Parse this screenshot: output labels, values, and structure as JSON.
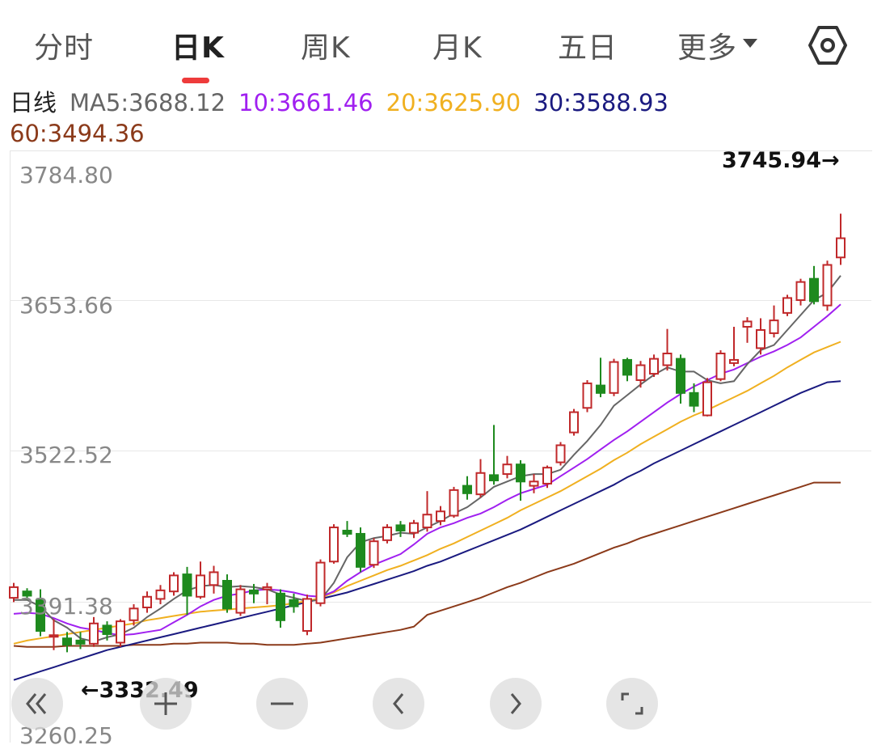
{
  "tabs": [
    {
      "label": "分时",
      "active": false
    },
    {
      "label": "日K",
      "active": true
    },
    {
      "label": "周K",
      "active": false
    },
    {
      "label": "月K",
      "active": false
    },
    {
      "label": "五日",
      "active": false
    },
    {
      "label": "更多",
      "active": false
    }
  ],
  "settings_icon": "hexagon-gear-icon",
  "legend": {
    "period": "日线",
    "ma5": "MA5:3688.12",
    "ma10": "10:3661.46",
    "ma20": "20:3625.90",
    "ma30": "30:3588.93",
    "ma60": "60:3494.36"
  },
  "colors": {
    "up": "#c0282a",
    "down": "#1e8a1e",
    "ma5": "#666666",
    "ma10": "#a020f0",
    "ma20": "#f0b020",
    "ma30": "#1a1a80",
    "ma60": "#8b3a1a",
    "accent": "#ee3b3b"
  },
  "y_axis": {
    "labels": [
      "3784.80",
      "3653.66",
      "3522.52",
      "3391.38",
      "3260.25"
    ]
  },
  "annotations": {
    "max_label": "3745.94→",
    "min_label": "←3332.49"
  },
  "controls": [
    {
      "name": "scroll-start-button",
      "icon": "double-chevron-left-icon"
    },
    {
      "name": "zoom-in-button",
      "icon": "plus-icon"
    },
    {
      "name": "zoom-out-button",
      "icon": "minus-icon"
    },
    {
      "name": "prev-button",
      "icon": "chevron-left-icon"
    },
    {
      "name": "next-button",
      "icon": "chevron-right-icon"
    },
    {
      "name": "fullscreen-button",
      "icon": "fullscreen-icon"
    }
  ],
  "chart_data": {
    "type": "candlestick",
    "ylim": [
      3260.25,
      3784.8
    ],
    "candles": [
      {
        "o": 3386,
        "c": 3396,
        "h": 3400,
        "l": 3382,
        "up": true
      },
      {
        "o": 3388,
        "c": 3392,
        "h": 3395,
        "l": 3384,
        "up": false
      },
      {
        "o": 3384,
        "c": 3355,
        "h": 3394,
        "l": 3350,
        "up": false
      },
      {
        "o": 3350,
        "c": 3351,
        "h": 3366,
        "l": 3337,
        "up": true
      },
      {
        "o": 3348,
        "c": 3342,
        "h": 3354,
        "l": 3335,
        "up": false
      },
      {
        "o": 3343,
        "c": 3346,
        "h": 3354,
        "l": 3338,
        "up": false
      },
      {
        "o": 3343,
        "c": 3362,
        "h": 3368,
        "l": 3340,
        "up": true
      },
      {
        "o": 3352,
        "c": 3360,
        "h": 3364,
        "l": 3346,
        "up": false
      },
      {
        "o": 3344,
        "c": 3364,
        "h": 3366,
        "l": 3340,
        "up": true
      },
      {
        "o": 3365,
        "c": 3376,
        "h": 3380,
        "l": 3360,
        "up": true
      },
      {
        "o": 3377,
        "c": 3387,
        "h": 3392,
        "l": 3372,
        "up": true
      },
      {
        "o": 3385,
        "c": 3393,
        "h": 3398,
        "l": 3380,
        "up": true
      },
      {
        "o": 3392,
        "c": 3407,
        "h": 3410,
        "l": 3388,
        "up": true
      },
      {
        "o": 3408,
        "c": 3388,
        "h": 3415,
        "l": 3370,
        "up": false
      },
      {
        "o": 3387,
        "c": 3407,
        "h": 3420,
        "l": 3385,
        "up": true
      },
      {
        "o": 3398,
        "c": 3410,
        "h": 3416,
        "l": 3390,
        "up": true
      },
      {
        "o": 3402,
        "c": 3376,
        "h": 3408,
        "l": 3372,
        "up": false
      },
      {
        "o": 3372,
        "c": 3394,
        "h": 3398,
        "l": 3369,
        "up": true
      },
      {
        "o": 3393,
        "c": 3390,
        "h": 3399,
        "l": 3381,
        "up": false
      },
      {
        "o": 3394,
        "c": 3396,
        "h": 3400,
        "l": 3380,
        "up": true
      },
      {
        "o": 3390,
        "c": 3365,
        "h": 3394,
        "l": 3358,
        "up": false
      },
      {
        "o": 3378,
        "c": 3384,
        "h": 3390,
        "l": 3372,
        "up": false
      },
      {
        "o": 3355,
        "c": 3385,
        "h": 3389,
        "l": 3351,
        "up": true
      },
      {
        "o": 3381,
        "c": 3419,
        "h": 3422,
        "l": 3378,
        "up": true
      },
      {
        "o": 3420,
        "c": 3452,
        "h": 3455,
        "l": 3418,
        "up": true
      },
      {
        "o": 3449,
        "c": 3446,
        "h": 3458,
        "l": 3443,
        "up": false
      },
      {
        "o": 3446,
        "c": 3415,
        "h": 3452,
        "l": 3410,
        "up": false
      },
      {
        "o": 3417,
        "c": 3439,
        "h": 3442,
        "l": 3414,
        "up": true
      },
      {
        "o": 3440,
        "c": 3452,
        "h": 3455,
        "l": 3437,
        "up": true
      },
      {
        "o": 3454,
        "c": 3449,
        "h": 3458,
        "l": 3443,
        "up": false
      },
      {
        "o": 3447,
        "c": 3456,
        "h": 3459,
        "l": 3442,
        "up": true
      },
      {
        "o": 3452,
        "c": 3464,
        "h": 3486,
        "l": 3448,
        "up": true
      },
      {
        "o": 3458,
        "c": 3467,
        "h": 3472,
        "l": 3454,
        "up": true
      },
      {
        "o": 3463,
        "c": 3487,
        "h": 3490,
        "l": 3461,
        "up": true
      },
      {
        "o": 3491,
        "c": 3484,
        "h": 3500,
        "l": 3478,
        "up": false
      },
      {
        "o": 3483,
        "c": 3503,
        "h": 3516,
        "l": 3480,
        "up": true
      },
      {
        "o": 3501,
        "c": 3496,
        "h": 3548,
        "l": 3492,
        "up": false
      },
      {
        "o": 3502,
        "c": 3511,
        "h": 3519,
        "l": 3498,
        "up": true
      },
      {
        "o": 3511,
        "c": 3495,
        "h": 3515,
        "l": 3477,
        "up": false
      },
      {
        "o": 3495,
        "c": 3491,
        "h": 3502,
        "l": 3484,
        "up": true
      },
      {
        "o": 3493,
        "c": 3508,
        "h": 3510,
        "l": 3489,
        "up": true
      },
      {
        "o": 3513,
        "c": 3529,
        "h": 3532,
        "l": 3510,
        "up": true
      },
      {
        "o": 3541,
        "c": 3560,
        "h": 3563,
        "l": 3538,
        "up": true
      },
      {
        "o": 3564,
        "c": 3587,
        "h": 3590,
        "l": 3560,
        "up": true
      },
      {
        "o": 3585,
        "c": 3578,
        "h": 3611,
        "l": 3574,
        "up": false
      },
      {
        "o": 3578,
        "c": 3607,
        "h": 3610,
        "l": 3575,
        "up": true
      },
      {
        "o": 3609,
        "c": 3595,
        "h": 3611,
        "l": 3589,
        "up": false
      },
      {
        "o": 3590,
        "c": 3604,
        "h": 3608,
        "l": 3583,
        "up": true
      },
      {
        "o": 3596,
        "c": 3610,
        "h": 3614,
        "l": 3593,
        "up": true
      },
      {
        "o": 3604,
        "c": 3615,
        "h": 3638,
        "l": 3599,
        "up": true
      },
      {
        "o": 3610,
        "c": 3578,
        "h": 3614,
        "l": 3568,
        "up": false
      },
      {
        "o": 3578,
        "c": 3566,
        "h": 3587,
        "l": 3560,
        "up": false
      },
      {
        "o": 3557,
        "c": 3588,
        "h": 3592,
        "l": 3556,
        "up": true
      },
      {
        "o": 3591,
        "c": 3615,
        "h": 3618,
        "l": 3589,
        "up": true
      },
      {
        "o": 3609,
        "c": 3606,
        "h": 3640,
        "l": 3603,
        "up": true
      },
      {
        "o": 3640,
        "c": 3645,
        "h": 3649,
        "l": 3625,
        "up": true
      },
      {
        "o": 3620,
        "c": 3637,
        "h": 3648,
        "l": 3614,
        "up": true
      },
      {
        "o": 3634,
        "c": 3646,
        "h": 3660,
        "l": 3630,
        "up": true
      },
      {
        "o": 3653,
        "c": 3667,
        "h": 3670,
        "l": 3650,
        "up": true
      },
      {
        "o": 3665,
        "c": 3682,
        "h": 3685,
        "l": 3660,
        "up": true
      },
      {
        "o": 3685,
        "c": 3664,
        "h": 3697,
        "l": 3661,
        "up": false
      },
      {
        "o": 3660,
        "c": 3698,
        "h": 3702,
        "l": 3655,
        "up": true
      },
      {
        "o": 3705,
        "c": 3723,
        "h": 3746,
        "l": 3698,
        "up": true
      }
    ],
    "ma5": [
      3384,
      3384,
      3378,
      3365,
      3358,
      3348,
      3345,
      3349,
      3352,
      3358,
      3368,
      3376,
      3385,
      3393,
      3397,
      3398,
      3396,
      3397,
      3396,
      3394,
      3389,
      3386,
      3383,
      3384,
      3400,
      3424,
      3438,
      3442,
      3444,
      3447,
      3446,
      3452,
      3458,
      3465,
      3471,
      3480,
      3490,
      3495,
      3500,
      3502,
      3502,
      3506,
      3520,
      3533,
      3548,
      3566,
      3576,
      3586,
      3595,
      3602,
      3598,
      3598,
      3590,
      3587,
      3589,
      3605,
      3618,
      3623,
      3637,
      3651,
      3665,
      3672,
      3688
    ],
    "ma10": [
      3371,
      3372,
      3371,
      3367,
      3362,
      3358,
      3356,
      3353,
      3351,
      3352,
      3354,
      3356,
      3363,
      3370,
      3378,
      3384,
      3388,
      3390,
      3393,
      3394,
      3393,
      3391,
      3388,
      3387,
      3392,
      3402,
      3410,
      3417,
      3422,
      3427,
      3436,
      3446,
      3452,
      3456,
      3461,
      3465,
      3471,
      3478,
      3484,
      3488,
      3492,
      3500,
      3508,
      3516,
      3525,
      3534,
      3542,
      3551,
      3560,
      3569,
      3577,
      3584,
      3590,
      3596,
      3600,
      3606,
      3612,
      3617,
      3623,
      3630,
      3640,
      3650,
      3661
    ],
    "ma20": [
      3343,
      3346,
      3348,
      3350,
      3352,
      3354,
      3356,
      3358,
      3360,
      3362,
      3365,
      3367,
      3369,
      3371,
      3373,
      3374,
      3375,
      3376,
      3377,
      3378,
      3379,
      3381,
      3383,
      3386,
      3391,
      3397,
      3402,
      3407,
      3412,
      3416,
      3421,
      3426,
      3432,
      3437,
      3443,
      3449,
      3455,
      3461,
      3468,
      3474,
      3480,
      3486,
      3493,
      3500,
      3507,
      3515,
      3522,
      3530,
      3537,
      3544,
      3551,
      3557,
      3562,
      3568,
      3574,
      3580,
      3587,
      3594,
      3602,
      3609,
      3616,
      3621,
      3626
    ],
    "ma30": [
      3309,
      3313,
      3317,
      3321,
      3325,
      3329,
      3333,
      3337,
      3340,
      3343,
      3346,
      3349,
      3352,
      3355,
      3358,
      3361,
      3364,
      3367,
      3370,
      3373,
      3376,
      3379,
      3382,
      3385,
      3388,
      3391,
      3395,
      3399,
      3403,
      3407,
      3411,
      3416,
      3420,
      3425,
      3430,
      3435,
      3440,
      3445,
      3450,
      3456,
      3462,
      3468,
      3474,
      3480,
      3486,
      3492,
      3499,
      3505,
      3512,
      3518,
      3524,
      3530,
      3536,
      3542,
      3548,
      3554,
      3560,
      3566,
      3572,
      3578,
      3583,
      3588,
      3589
    ],
    "ma60": [
      3341,
      3340,
      3340,
      3340,
      3341,
      3341,
      3341,
      3341,
      3341,
      3342,
      3342,
      3342,
      3343,
      3343,
      3344,
      3344,
      3344,
      3343,
      3343,
      3342,
      3342,
      3342,
      3343,
      3344,
      3346,
      3348,
      3350,
      3352,
      3354,
      3356,
      3359,
      3370,
      3374,
      3378,
      3382,
      3386,
      3391,
      3396,
      3400,
      3405,
      3410,
      3414,
      3418,
      3423,
      3428,
      3433,
      3437,
      3442,
      3446,
      3450,
      3454,
      3458,
      3462,
      3466,
      3470,
      3474,
      3478,
      3482,
      3486,
      3490,
      3494,
      3494,
      3494
    ]
  }
}
